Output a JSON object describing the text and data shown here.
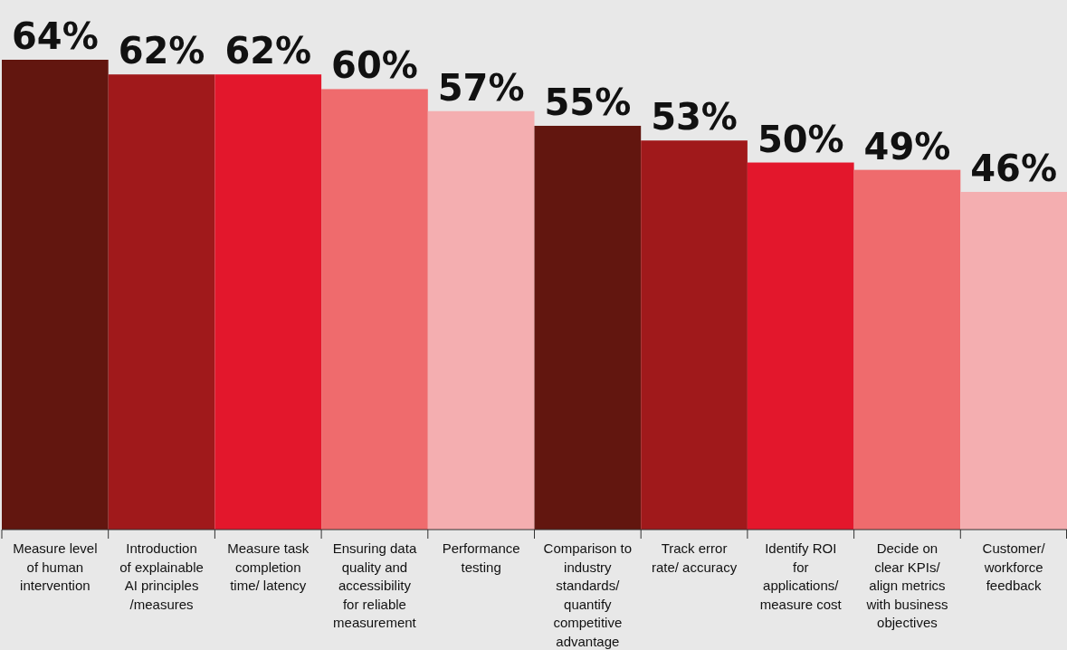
{
  "chart_data": {
    "type": "bar",
    "categories": [
      "Measure level of human intervention",
      "Introduction of explainable AI principles /measures",
      "Measure task completion time/ latency",
      "Ensuring data quality and accessibility for reliable measurement",
      "Performance testing",
      "Comparison to industry standards/ quantify competitive advantage",
      "Track error rate/ accuracy",
      "Identify ROI for applications/ measure cost",
      "Decide on clear KPIs/ align metrics with business objectives",
      "Customer/ workforce feedback"
    ],
    "values": [
      64,
      62,
      62,
      60,
      57,
      55,
      53,
      50,
      49,
      46
    ],
    "colors": [
      "#62160f",
      "#a0191b",
      "#e3172c",
      "#ef6b6d",
      "#f4aeb0",
      "#62160f",
      "#a0191b",
      "#e3172c",
      "#ef6b6d",
      "#f4aeb0"
    ],
    "value_labels": [
      "64%",
      "62%",
      "62%",
      "60%",
      "57%",
      "55%",
      "53%",
      "50%",
      "49%",
      "46%"
    ]
  }
}
